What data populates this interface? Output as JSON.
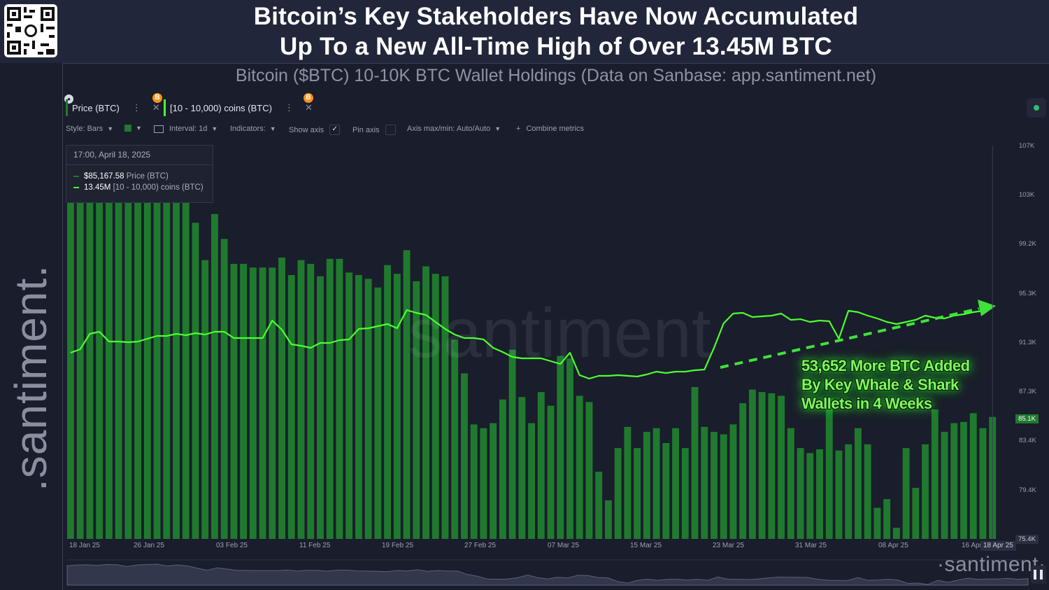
{
  "header": {
    "title_line1": "Bitcoin’s Key Stakeholders Have Now Accumulated",
    "title_line2": "Up To a New All-Time High of Over 13.45M BTC",
    "subtitle": "Bitcoin ($BTC) 10-10K BTC Wallet Holdings (Data on Sanbase: app.santiment.net)"
  },
  "brand": {
    "side_watermark": ".santiment.",
    "chart_watermark": "santiment",
    "bottom_watermark": "·santiment·"
  },
  "tabs": [
    {
      "label": "Price (BTC)",
      "color": "#1f7a2e",
      "badge": "B"
    },
    {
      "label": "[10 - 10,000) coins (BTC)",
      "color": "#4cff2f",
      "badge": "B"
    }
  ],
  "toolbar": {
    "style_label": "Style: Bars",
    "interval_label": "Interval: 1d",
    "indicators_label": "Indicators:",
    "show_axis_label": "Show axis",
    "pin_axis_label": "Pin axis",
    "axis_minmax_label": "Axis max/min: Auto/Auto",
    "combine_label": "Combine metrics"
  },
  "tooltip": {
    "time": "17:00, April 18, 2025",
    "price_value": "$85,167.58",
    "price_name": "Price (BTC)",
    "holdings_value": "13.45M",
    "holdings_name": "[10 - 10,000) coins (BTC)"
  },
  "annotation": {
    "line1": "53,652 More BTC Added",
    "line2": "By Key Whale & Shark",
    "line3": "Wallets in 4 Weeks"
  },
  "axis": {
    "y_ticks": [
      "107K",
      "103K",
      "99.2K",
      "95.3K",
      "91.3K",
      "87.3K",
      "83.4K",
      "79.4K"
    ],
    "y_current": "85.1K",
    "y_min": "75.4K",
    "x_ticks": [
      "18 Jan 25",
      "26 Jan 25",
      "03 Feb 25",
      "11 Feb 25",
      "19 Feb 25",
      "27 Feb 25",
      "07 Mar 25",
      "15 Mar 25",
      "23 Mar 25",
      "31 Mar 25",
      "08 Apr 25",
      "16 Apr 25"
    ],
    "x_current": "18 Apr 25"
  },
  "colors": {
    "price_bars": "#1f7a2e",
    "holdings_line": "#4cff2f",
    "annotation": "#7dff5a",
    "background": "#1a1d2b"
  },
  "chart_data": {
    "type": "bar",
    "title": "Bitcoin’s Key Stakeholders Have Now Accumulated Up To a New All-Time High of Over 13.45M BTC",
    "subtitle": "Bitcoin ($BTC) 10-10K BTC Wallet Holdings (Data on Sanbase: app.santiment.net)",
    "x_start": "2025-01-18",
    "x_end": "2025-04-18",
    "ylim": [
      75400,
      107000
    ],
    "y_scale": "linear",
    "grid": false,
    "series": [
      {
        "name": "Price (BTC)",
        "type": "bar",
        "values": [
          104500,
          105600,
          106000,
          105000,
          106500,
          106000,
          103300,
          105800,
          106500,
          107000,
          104100,
          105800,
          104400,
          100800,
          97800,
          101500,
          99500,
          97500,
          97500,
          97200,
          97200,
          97200,
          98000,
          96600,
          97800,
          97500,
          96500,
          97900,
          97900,
          96800,
          96600,
          96300,
          95600,
          97400,
          96700,
          98600,
          96100,
          97300,
          96700,
          96500,
          91400,
          88700,
          84600,
          84300,
          84700,
          86600,
          90600,
          86800,
          84700,
          87200,
          86100,
          90100,
          89900,
          86900,
          86400,
          80800,
          78500,
          82700,
          84400,
          82700,
          84000,
          84300,
          83100,
          84300,
          82700,
          87600,
          84400,
          84000,
          83800,
          84600,
          86300,
          87400,
          87200,
          87100,
          86900,
          84300,
          82700,
          82300,
          82600,
          86700,
          82500,
          83000,
          84300,
          83000,
          77900,
          78600,
          76300,
          82700,
          79500,
          83000,
          85800,
          84000,
          84700,
          84800,
          85500,
          84300,
          85200
        ]
      },
      {
        "name": "[10 - 10,000) coins (BTC)",
        "type": "line",
        "axis": "hidden",
        "unit": "BTC",
        "last_value": 13450000,
        "annotation_change": 53652
      }
    ]
  }
}
